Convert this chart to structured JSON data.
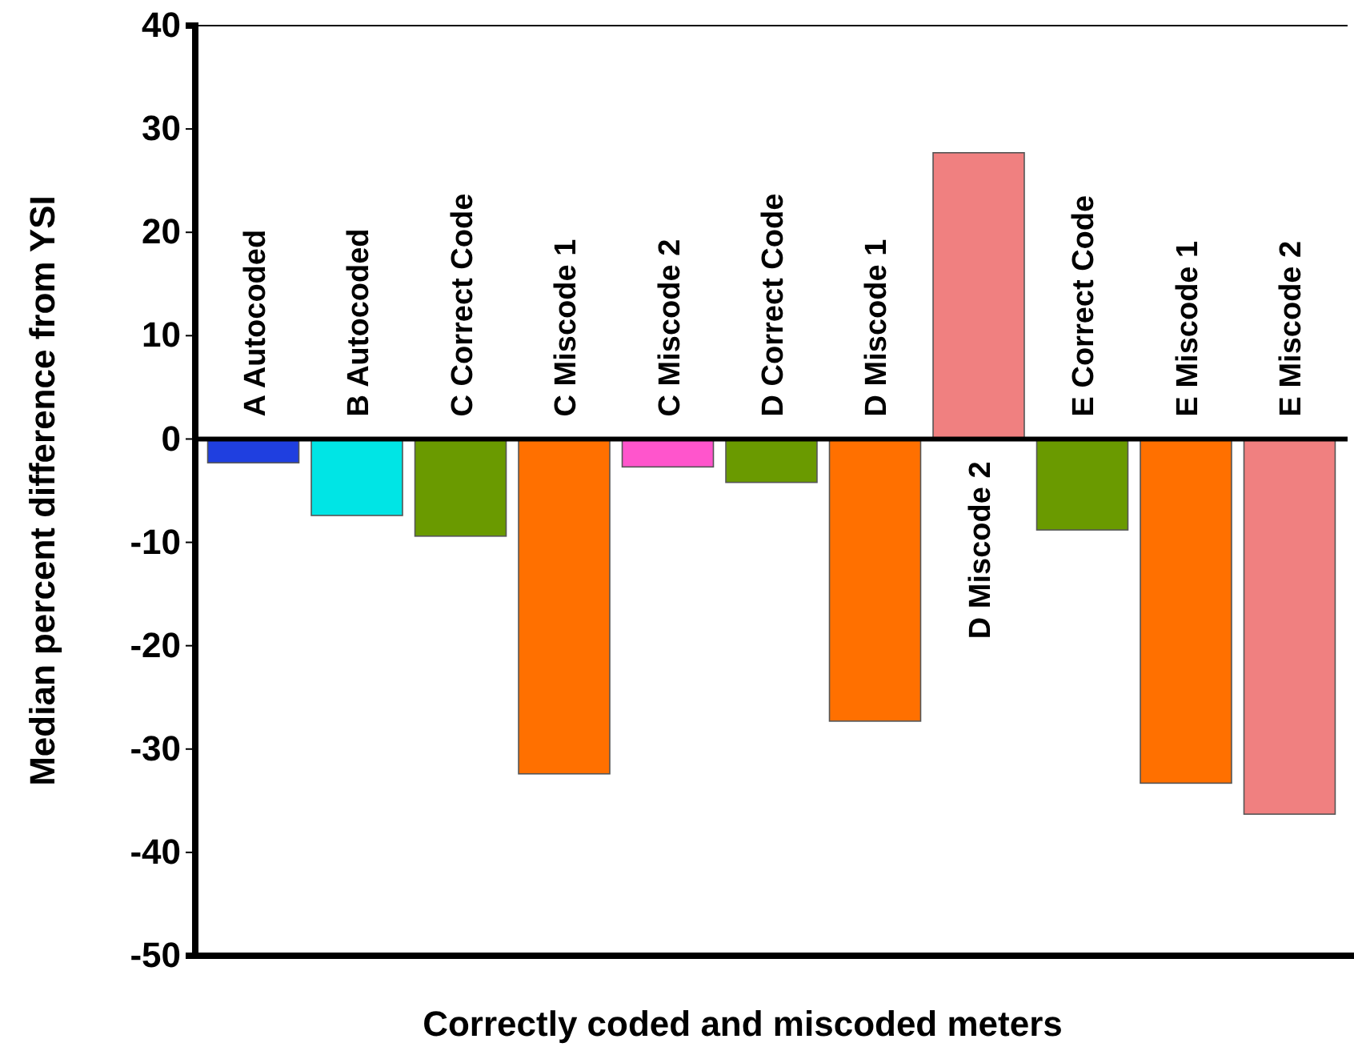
{
  "chart_data": {
    "type": "bar",
    "xlabel": "Correctly coded and miscoded meters",
    "ylabel": "Median percent difference from YSI",
    "categories": [
      "A  Autocoded",
      "B  Autocoded",
      "C  Correct Code",
      "C  Miscode 1",
      "C  Miscode 2",
      "D  Correct Code",
      "D  Miscode 1",
      "D  Miscode 2",
      "E  Correct Code",
      "E  Miscode 1",
      "E  Miscode 2"
    ],
    "values": [
      -2.3,
      -7.4,
      -9.4,
      -32.4,
      -2.7,
      -4.2,
      -27.3,
      27.7,
      -8.8,
      -33.3,
      -36.3
    ],
    "colors": [
      "#1f3fe0",
      "#00e5e5",
      "#6a9a00",
      "#ff7000",
      "#ff55cc",
      "#6a9a00",
      "#ff7000",
      "#f08080",
      "#6a9a00",
      "#ff7000",
      "#f08080"
    ],
    "ylim": [
      -50,
      40
    ],
    "yticks": [
      -50,
      -40,
      -30,
      -20,
      -10,
      0,
      10,
      20,
      30,
      40
    ],
    "grid": false
  }
}
